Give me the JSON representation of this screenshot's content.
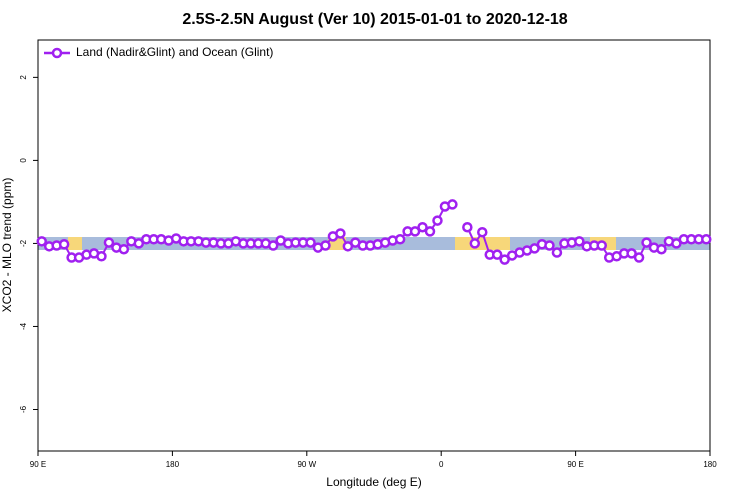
{
  "chart_data": {
    "type": "line",
    "title": "2.5S-2.5N August (Ver 10)   2015-01-01 to 2020-12-18",
    "x_label": "Longitude (deg E)",
    "y_label": "XCO2 - MLO trend (ppm)",
    "xlim": [
      90,
      540
    ],
    "xticks": [
      {
        "value": 90,
        "label": "90 E"
      },
      180,
      {
        "value": 270,
        "label": "90 W"
      },
      {
        "value": 360,
        "label": "0"
      },
      {
        "value": 450,
        "label": "90 E"
      },
      {
        "value": 540,
        "label": "180"
      }
    ],
    "ylim": [
      -7,
      2.9
    ],
    "yticks": [
      -6,
      -4,
      -2,
      0,
      2
    ],
    "legend": "top-left",
    "x": [
      92.5,
      97.5,
      102.5,
      107.5,
      112.5,
      117.5,
      122.5,
      127.5,
      132.5,
      137.5,
      142.5,
      147.5,
      152.5,
      157.5,
      162.5,
      167.5,
      172.5,
      177.5,
      182.5,
      187.5,
      192.5,
      197.5,
      202.5,
      207.5,
      212.5,
      217.5,
      222.5,
      227.5,
      232.5,
      237.5,
      242.5,
      247.5,
      252.5,
      257.5,
      262.5,
      267.5,
      272.5,
      277.5,
      282.5,
      287.5,
      292.5,
      297.5,
      302.5,
      307.5,
      312.5,
      317.5,
      322.5,
      327.5,
      332.5,
      337.5,
      342.5,
      347.5,
      352.5,
      357.5,
      362.5,
      367.5,
      372.5,
      377.5,
      382.5,
      387.5,
      392.5,
      397.5,
      402.5,
      407.5,
      412.5,
      417.5,
      422.5,
      427.5,
      432.5,
      437.5,
      442.5,
      447.5,
      452.5,
      457.5,
      462.5,
      467.5,
      472.5,
      477.5,
      482.5,
      487.5,
      492.5,
      497.5,
      502.5,
      507.5,
      512.5,
      517.5,
      522.5,
      527.5,
      532.5,
      537.5
    ],
    "series": [
      {
        "name": "Land (Nadir&Glint) and Ocean (Glint)",
        "color": "#a020f0",
        "values": [
          -1.95,
          -2.07,
          -2.05,
          -2.02,
          -2.34,
          -2.34,
          -2.27,
          -2.24,
          -2.31,
          -1.98,
          -2.1,
          -2.14,
          -1.95,
          -2.0,
          -1.9,
          -1.9,
          -1.9,
          -1.93,
          -1.88,
          -1.95,
          -1.95,
          -1.95,
          -1.98,
          -1.98,
          -2.0,
          -2.0,
          -1.95,
          -2.0,
          -2.0,
          -2.0,
          -2.0,
          -2.05,
          -1.93,
          -2.0,
          -1.98,
          -1.98,
          -1.98,
          -2.1,
          -2.05,
          -1.83,
          -1.76,
          -2.07,
          -1.98,
          -2.05,
          -2.05,
          -2.02,
          -1.98,
          -1.93,
          -1.9,
          -1.71,
          -1.71,
          -1.61,
          -1.71,
          -1.45,
          -1.11,
          -1.06,
          null,
          -1.61,
          -2.0,
          -1.73,
          -2.27,
          -2.27,
          -2.39,
          -2.29,
          -2.22,
          -2.17,
          -2.12,
          -2.02,
          -2.05,
          -2.22,
          -2.0,
          -1.98,
          -1.95,
          -2.07,
          -2.05,
          -2.05,
          -2.34,
          -2.31,
          -2.24,
          -2.24,
          -2.34,
          -1.98,
          -2.1,
          -2.14,
          -1.95,
          -2.0,
          -1.9,
          -1.9,
          -1.9,
          -1.9
        ]
      }
    ]
  }
}
